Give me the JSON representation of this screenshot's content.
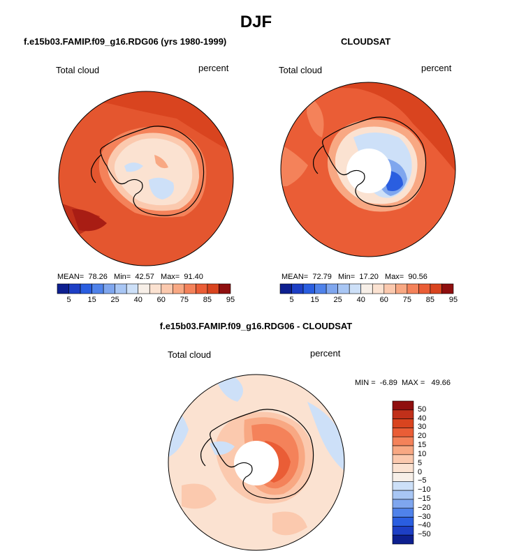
{
  "season_title": "DJF",
  "colors": {
    "red1": "#fbe2d1",
    "red2": "#fbc9ae",
    "red3": "#f8a883",
    "red4": "#f4825a",
    "red5": "#ea5d36",
    "red6": "#d9441f",
    "red7": "#c0301a",
    "red8": "#8f0f0f",
    "blue1": "#cde0f8",
    "blue2": "#a8c6f4",
    "blue3": "#7fa6ee",
    "blue4": "#4f82ea",
    "blue5": "#2a5ee0",
    "blue6": "#1d3fc5",
    "blue7": "#0d1f8f",
    "neutral": "#f7efe8",
    "hole": "#ffffff",
    "coast": "#000000"
  },
  "panels": {
    "model": {
      "title": "f.e15b03.FAMIP.f09_g16.RDG06 (yrs 1980-1999)",
      "variable": "Total cloud",
      "units": "percent",
      "stats": {
        "mean_label": "MEAN=",
        "mean": "78.26",
        "min_label": "Min=",
        "min": "42.57",
        "max_label": "Max=",
        "max": "91.40"
      },
      "colorbar_ticks": [
        "5",
        "15",
        "25",
        "40",
        "60",
        "75",
        "85",
        "95"
      ]
    },
    "obs": {
      "title": "CLOUDSAT",
      "variable": "Total cloud",
      "units": "percent",
      "stats": {
        "mean_label": "MEAN=",
        "mean": "72.79",
        "min_label": "Min=",
        "min": "17.20",
        "max_label": "Max=",
        "max": "90.56"
      },
      "colorbar_ticks": [
        "5",
        "15",
        "25",
        "40",
        "60",
        "75",
        "85",
        "95"
      ]
    },
    "diff": {
      "title": "f.e15b03.FAMIP.f09_g16.RDG06 - CLOUDSAT",
      "variable": "Total cloud",
      "units": "percent",
      "minmax": {
        "min_label": "MIN =",
        "min": "-6.89",
        "max_label": "MAX =",
        "max": "49.66"
      },
      "colorbar_ticks": [
        "50",
        "40",
        "30",
        "20",
        "15",
        "10",
        "5",
        "0",
        "−5",
        "−10",
        "−15",
        "−20",
        "−30",
        "−40",
        "−50"
      ]
    }
  }
}
